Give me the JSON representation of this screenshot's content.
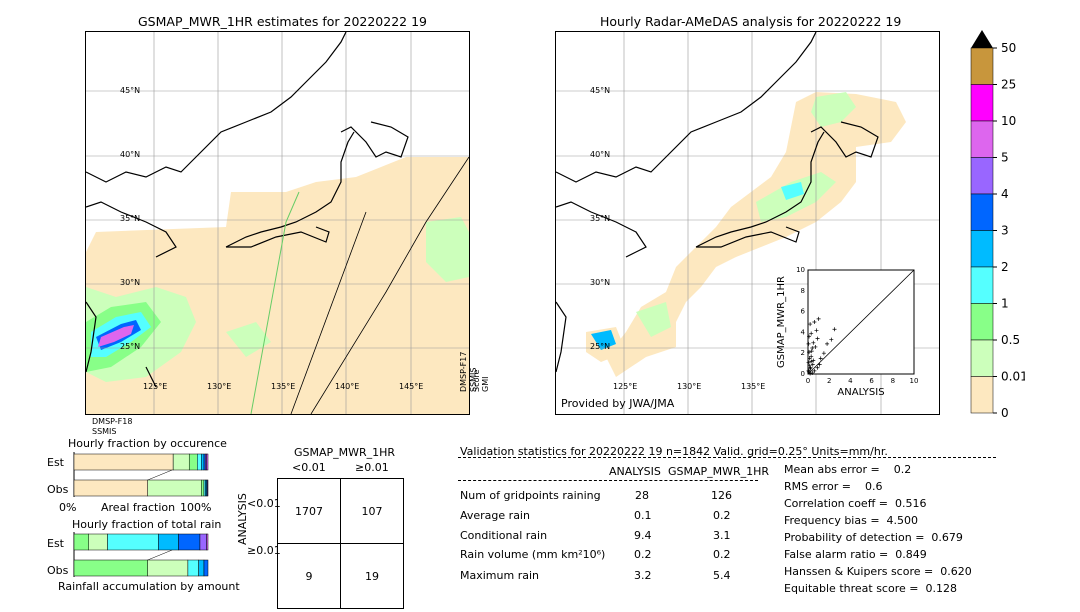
{
  "left_map": {
    "title": "GSMAP_MWR_1HR estimates for 20220222 19",
    "lat_labels": [
      "45°N",
      "40°N",
      "35°N",
      "30°N",
      "25°N"
    ],
    "lon_labels": [
      "125°E",
      "130°E",
      "135°E",
      "140°E",
      "145°E"
    ],
    "sensor_bottom": "DMSP-F18",
    "sensor_bottom2": "SSMIS",
    "sensor_side1": "DMSP-F17",
    "sensor_side2": "SSMIS",
    "sensor_side3": "Score",
    "sensor_side4": "GMI"
  },
  "right_map": {
    "title": "Hourly Radar-AMeDAS analysis for 20220222 19",
    "lat_labels": [
      "45°N",
      "40°N",
      "35°N",
      "30°N",
      "25°N"
    ],
    "lon_labels": [
      "125°E",
      "130°E",
      "135°E"
    ],
    "credit": "Provided by JWA/JMA"
  },
  "colorbar": {
    "labels": [
      "50",
      "25",
      "10",
      "5",
      "4",
      "3",
      "2",
      "1",
      "0.5",
      "0.01",
      "0"
    ],
    "colors": [
      "#c8963c",
      "#ff00ff",
      "#dd66ee",
      "#9966ff",
      "#0066ff",
      "#00bbff",
      "#55ffff",
      "#88ff88",
      "#ccffbb",
      "#fde8c0"
    ]
  },
  "scatter": {
    "xlabel": "ANALYSIS",
    "ylabel": "GSMAP_MWR_1HR",
    "ticks": [
      "0",
      "2",
      "4",
      "6",
      "8",
      "10"
    ],
    "points": [
      [
        0.1,
        0.2
      ],
      [
        0.2,
        0.5
      ],
      [
        0.3,
        1.2
      ],
      [
        0.1,
        2.1
      ],
      [
        0.5,
        3.0
      ],
      [
        0.8,
        4.2
      ],
      [
        0.2,
        4.8
      ],
      [
        1.0,
        5.3
      ],
      [
        0.4,
        0.1
      ],
      [
        0.6,
        0.3
      ],
      [
        0.15,
        0.8
      ],
      [
        0.3,
        1.7
      ],
      [
        0.7,
        2.6
      ],
      [
        0.9,
        3.4
      ],
      [
        0.05,
        2.9
      ],
      [
        0.1,
        3.6
      ],
      [
        0.2,
        0.05
      ],
      [
        1.2,
        1.5
      ],
      [
        1.5,
        2.0
      ],
      [
        0.5,
        1.3
      ],
      [
        0.35,
        2.2
      ],
      [
        0.25,
        0.6
      ],
      [
        0.45,
        0.9
      ],
      [
        1.8,
        2.9
      ],
      [
        2.2,
        3.3
      ],
      [
        2.5,
        4.3
      ],
      [
        0.6,
        5.0
      ],
      [
        0.05,
        1.1
      ],
      [
        0.05,
        0.3
      ],
      [
        0.15,
        1.5
      ],
      [
        0.4,
        2.5
      ],
      [
        0.9,
        0.6
      ],
      [
        1.1,
        0.9
      ],
      [
        0.3,
        3.9
      ]
    ]
  },
  "fraction_occurrence": {
    "title": "Hourly fraction by occurence",
    "row1": "Est",
    "row2": "Obs",
    "axis_left": "0%",
    "axis_mid": "Areal fraction",
    "axis_right": "100%",
    "est_segments": [
      0.74,
      0.12,
      0.06,
      0.03,
      0.02,
      0.01,
      0.01,
      0.01
    ],
    "obs_segments": [
      0.55,
      0.4,
      0.02,
      0.01,
      0.01,
      0.005,
      0.005
    ]
  },
  "fraction_amount": {
    "title": "Hourly fraction of total rain",
    "row1": "Est",
    "row2": "Obs",
    "footer": "Rainfall accumulation by amount",
    "est_segments": [
      0.11,
      0.14,
      0.38,
      0.15,
      0.16,
      0.05,
      0.01
    ],
    "obs_segments": [
      0.55,
      0.3,
      0.08,
      0.04,
      0.03
    ]
  },
  "contingency": {
    "title": "GSMAP_MWR_1HR",
    "col1": "<0.01",
    "col2": "≥0.01",
    "row_axis": "ANALYSIS",
    "row1": "<0.01",
    "row2": "≥0.01",
    "cells": [
      [
        "1707",
        "107"
      ],
      [
        "9",
        "19"
      ]
    ]
  },
  "validation": {
    "header": "Validation statistics for 20220222 19  n=1842 Valid. grid=0.25° Units=mm/hr.",
    "col_analysis": "ANALYSIS",
    "col_est": "GSMAP_MWR_1HR",
    "rows": [
      {
        "label": "Num of gridpoints raining",
        "a": "28",
        "e": "126"
      },
      {
        "label": "Average rain",
        "a": "0.1",
        "e": "0.2"
      },
      {
        "label": "Conditional rain",
        "a": "9.4",
        "e": "3.1"
      },
      {
        "label": "Rain volume (mm km²10⁶)",
        "a": "0.2",
        "e": "0.2"
      },
      {
        "label": "Maximum rain",
        "a": "3.2",
        "e": "5.4"
      }
    ],
    "scores": [
      "Mean abs error =    0.2",
      "RMS error =    0.6",
      "Correlation coeff =  0.516",
      "Frequency bias =  4.500",
      "Probability of detection =  0.679",
      "False alarm ratio =  0.849",
      "Hanssen & Kuipers score =  0.620",
      "Equitable threat score =  0.128"
    ]
  },
  "chart_data": {
    "type": "scatter",
    "xlabel": "ANALYSIS",
    "ylabel": "GSMAP_MWR_1HR",
    "xlim": [
      0,
      10
    ],
    "ylim": [
      0,
      10
    ],
    "x": [
      0.1,
      0.2,
      0.3,
      0.1,
      0.5,
      0.8,
      0.2,
      1.0,
      0.4,
      0.6,
      0.15,
      0.3,
      0.7,
      0.9,
      0.05,
      0.1,
      0.2,
      1.2,
      1.5,
      0.5,
      0.35,
      0.25,
      0.45,
      1.8,
      2.2,
      2.5,
      0.6,
      0.05,
      0.05,
      0.15,
      0.4,
      0.9,
      1.1,
      0.3
    ],
    "y": [
      0.2,
      0.5,
      1.2,
      2.1,
      3.0,
      4.2,
      4.8,
      5.3,
      0.1,
      0.3,
      0.8,
      1.7,
      2.6,
      3.4,
      2.9,
      3.6,
      0.05,
      1.5,
      2.0,
      1.3,
      2.2,
      0.6,
      0.9,
      2.9,
      3.3,
      4.3,
      5.0,
      1.1,
      0.3,
      1.5,
      2.5,
      0.6,
      0.9,
      3.9
    ]
  }
}
